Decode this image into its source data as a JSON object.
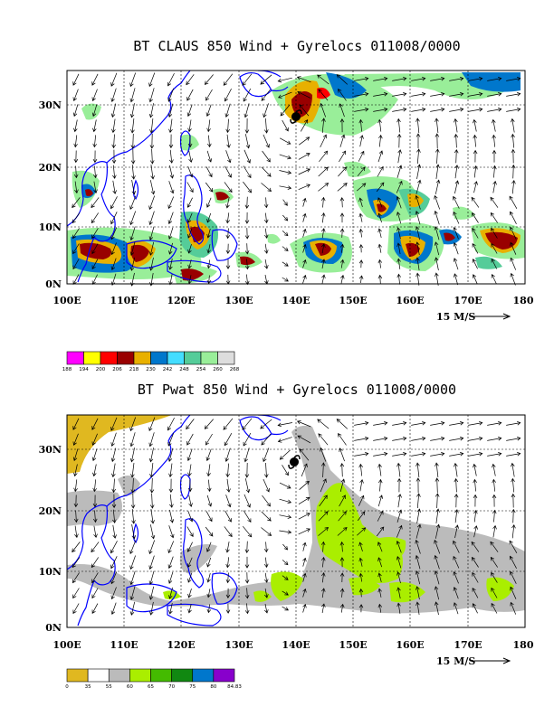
{
  "panels": [
    {
      "title": "BT CLAUS 850 Wind + Gyrelocs 011008/0000",
      "x_ticks": [
        "100E",
        "110E",
        "120E",
        "130E",
        "140E",
        "150E",
        "160E",
        "170E",
        "180"
      ],
      "y_ticks": [
        "0N",
        "10N",
        "20N",
        "30N"
      ],
      "wind_scale_label": "15 M/S",
      "colorbar": {
        "labels": [
          "188",
          "194",
          "200",
          "206",
          "218",
          "230",
          "242",
          "248",
          "254",
          "260",
          "268"
        ],
        "colors": [
          "#ff00ff",
          "#ffff00",
          "#ff0000",
          "#990000",
          "#e8b000",
          "#0077cc",
          "#44ddff",
          "#55cc99",
          "#99ee99",
          "#dddddd"
        ]
      }
    },
    {
      "title": "BT Pwat 850 Wind + Gyrelocs 011008/0000",
      "x_ticks": [
        "100E",
        "110E",
        "120E",
        "130E",
        "140E",
        "150E",
        "160E",
        "170E",
        "180"
      ],
      "y_ticks": [
        "0N",
        "10N",
        "20N",
        "30N"
      ],
      "wind_scale_label": "15 M/S",
      "colorbar": {
        "labels": [
          "0",
          "35",
          "55",
          "60",
          "65",
          "70",
          "75",
          "80",
          "84.83"
        ],
        "colors": [
          "#e0b820",
          "#ffffff",
          "#bbbbbb",
          "#aaee00",
          "#44bb00",
          "#118811",
          "#0077cc",
          "#8800cc"
        ]
      }
    }
  ],
  "colors": {
    "coast": "#0000ff",
    "grid": "#000000",
    "cyclone": "#000000"
  },
  "icons": {
    "cyclone": "cyclone-symbol-icon",
    "arrow": "wind-arrow-icon"
  }
}
